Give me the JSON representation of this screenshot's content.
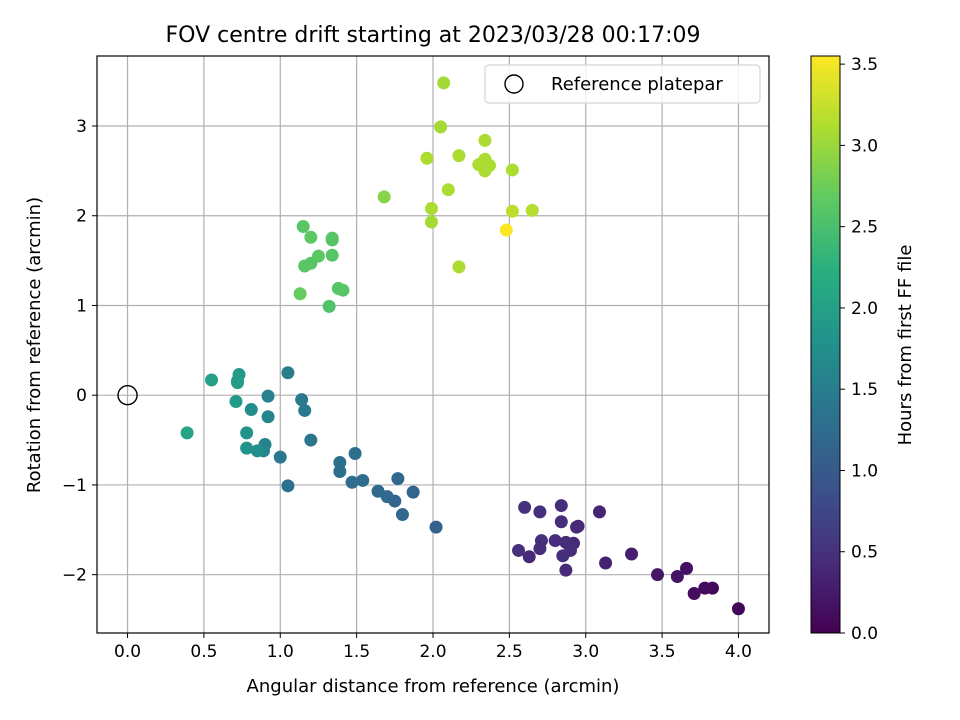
{
  "chart_data": {
    "type": "scatter",
    "title": "FOV centre drift starting at 2023/03/28 00:17:09",
    "xlabel": "Angular distance from reference (arcmin)",
    "ylabel": "Rotation from reference (arcmin)",
    "xlim": [
      -0.2,
      4.2
    ],
    "ylim": [
      -2.65,
      3.78
    ],
    "xticks": [
      "0.0",
      "0.5",
      "1.0",
      "1.5",
      "2.0",
      "2.5",
      "3.0",
      "3.5",
      "4.0"
    ],
    "yticks": [
      "−2",
      "−1",
      "0",
      "1",
      "2",
      "3"
    ],
    "grid": true,
    "legend": {
      "position": "top-right",
      "entries": [
        "Reference platepar"
      ]
    },
    "reference_point": {
      "x": 0.0,
      "y": 0.0
    },
    "colorbar": {
      "label": "Hours from first FF file",
      "colormap": "viridis",
      "range": [
        0.0,
        3.55
      ],
      "ticks": [
        "0.0",
        "0.5",
        "1.0",
        "1.5",
        "2.0",
        "2.5",
        "3.0",
        "3.5"
      ]
    },
    "series": [
      {
        "points": [
          [
            4.0,
            -2.38,
            0.05
          ],
          [
            3.83,
            -2.15,
            0.08
          ],
          [
            3.78,
            -2.15,
            0.1
          ],
          [
            3.71,
            -2.21,
            0.12
          ],
          [
            3.66,
            -1.93,
            0.15
          ],
          [
            3.6,
            -2.02,
            0.18
          ],
          [
            3.47,
            -2.0,
            0.2
          ],
          [
            3.3,
            -1.77,
            0.3
          ],
          [
            3.13,
            -1.87,
            0.32
          ],
          [
            3.09,
            -1.3,
            0.35
          ],
          [
            2.95,
            -1.46,
            0.4
          ],
          [
            2.94,
            -1.47,
            0.42
          ],
          [
            2.92,
            -1.65,
            0.4
          ],
          [
            2.9,
            -1.73,
            0.45
          ],
          [
            2.87,
            -1.95,
            0.42
          ],
          [
            2.87,
            -1.64,
            0.43
          ],
          [
            2.85,
            -1.79,
            0.48
          ],
          [
            2.84,
            -1.41,
            0.45
          ],
          [
            2.84,
            -1.23,
            0.48
          ],
          [
            2.8,
            -1.62,
            0.44
          ],
          [
            2.71,
            -1.62,
            0.5
          ],
          [
            2.7,
            -1.71,
            0.45
          ],
          [
            2.7,
            -1.3,
            0.48
          ],
          [
            2.63,
            -1.8,
            0.4
          ],
          [
            2.6,
            -1.25,
            0.52
          ],
          [
            2.56,
            -1.73,
            0.48
          ],
          [
            2.02,
            -1.47,
            1.1
          ],
          [
            1.87,
            -1.08,
            1.15
          ],
          [
            1.8,
            -1.33,
            1.2
          ],
          [
            1.77,
            -0.93,
            1.2
          ],
          [
            1.75,
            -1.18,
            1.15
          ],
          [
            1.7,
            -1.13,
            1.2
          ],
          [
            1.64,
            -1.07,
            1.2
          ],
          [
            1.54,
            -0.95,
            1.25
          ],
          [
            1.49,
            -0.65,
            1.3
          ],
          [
            1.47,
            -0.97,
            1.25
          ],
          [
            1.39,
            -0.75,
            1.3
          ],
          [
            1.39,
            -0.85,
            1.3
          ],
          [
            1.2,
            -0.5,
            1.4
          ],
          [
            1.16,
            -0.17,
            1.45
          ],
          [
            1.14,
            -0.05,
            1.45
          ],
          [
            1.05,
            0.25,
            1.5
          ],
          [
            1.05,
            -1.01,
            1.3
          ],
          [
            1.0,
            -0.69,
            1.4
          ],
          [
            0.92,
            -0.24,
            1.6
          ],
          [
            0.92,
            -0.01,
            1.55
          ],
          [
            0.9,
            -0.55,
            1.55
          ],
          [
            0.89,
            -0.62,
            1.6
          ],
          [
            0.85,
            -0.62,
            1.75
          ],
          [
            0.81,
            -0.16,
            1.7
          ],
          [
            0.78,
            -0.59,
            1.8
          ],
          [
            0.78,
            -0.42,
            1.8
          ],
          [
            0.73,
            0.23,
            1.9
          ],
          [
            0.72,
            0.16,
            1.95
          ],
          [
            0.72,
            0.14,
            1.95
          ],
          [
            0.71,
            -0.07,
            1.9
          ],
          [
            0.55,
            0.17,
            2.0
          ],
          [
            0.39,
            -0.42,
            2.05
          ],
          [
            1.41,
            1.17,
            2.6
          ],
          [
            1.38,
            1.19,
            2.6
          ],
          [
            1.32,
            0.99,
            2.55
          ],
          [
            1.34,
            1.56,
            2.6
          ],
          [
            1.34,
            1.73,
            2.6
          ],
          [
            1.34,
            1.75,
            2.6
          ],
          [
            1.25,
            1.55,
            2.65
          ],
          [
            1.2,
            1.47,
            2.6
          ],
          [
            1.2,
            1.76,
            2.65
          ],
          [
            1.15,
            1.88,
            2.62
          ],
          [
            1.16,
            1.44,
            2.62
          ],
          [
            1.13,
            1.13,
            2.7
          ],
          [
            1.68,
            2.21,
            2.9
          ],
          [
            2.07,
            3.48,
            3.05
          ],
          [
            2.05,
            2.99,
            3.05
          ],
          [
            1.96,
            2.64,
            3.1
          ],
          [
            1.99,
            2.08,
            3.1
          ],
          [
            1.99,
            1.93,
            3.05
          ],
          [
            2.1,
            2.29,
            3.1
          ],
          [
            2.17,
            2.67,
            3.1
          ],
          [
            2.17,
            1.43,
            3.1
          ],
          [
            2.3,
            2.57,
            3.1
          ],
          [
            2.34,
            2.84,
            3.1
          ],
          [
            2.34,
            2.63,
            3.1
          ],
          [
            2.34,
            2.5,
            3.1
          ],
          [
            2.37,
            2.56,
            3.1
          ],
          [
            2.52,
            2.51,
            3.1
          ],
          [
            2.52,
            2.05,
            3.2
          ],
          [
            2.65,
            2.06,
            3.15
          ],
          [
            2.48,
            1.84,
            3.55
          ]
        ]
      }
    ]
  }
}
